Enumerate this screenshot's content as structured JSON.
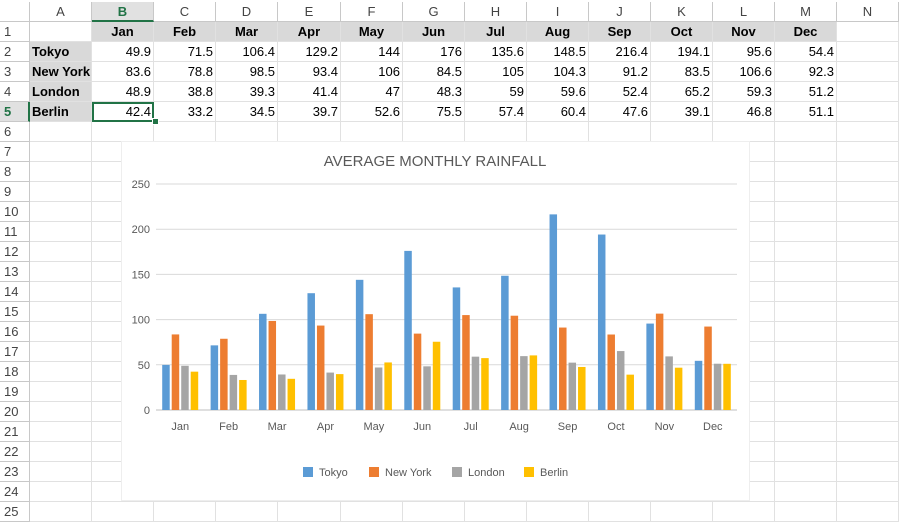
{
  "columns": [
    "A",
    "B",
    "C",
    "D",
    "E",
    "F",
    "G",
    "H",
    "I",
    "J",
    "K",
    "L",
    "M",
    "N"
  ],
  "rows": [
    "1",
    "2",
    "3",
    "4",
    "5",
    "6",
    "7",
    "8",
    "9",
    "10",
    "11",
    "12",
    "13",
    "14",
    "15",
    "16",
    "17",
    "18",
    "19",
    "20",
    "21",
    "22",
    "23",
    "24",
    "25"
  ],
  "selection": {
    "column": "B",
    "row": "5"
  },
  "months": [
    "Jan",
    "Feb",
    "Mar",
    "Apr",
    "May",
    "Jun",
    "Jul",
    "Aug",
    "Sep",
    "Oct",
    "Nov",
    "Dec"
  ],
  "table": [
    {
      "city": "Tokyo",
      "values": [
        "49.9",
        "71.5",
        "106.4",
        "129.2",
        "144",
        "176",
        "135.6",
        "148.5",
        "216.4",
        "194.1",
        "95.6",
        "54.4"
      ]
    },
    {
      "city": "New York",
      "values": [
        "83.6",
        "78.8",
        "98.5",
        "93.4",
        "106",
        "84.5",
        "105",
        "104.3",
        "91.2",
        "83.5",
        "106.6",
        "92.3"
      ]
    },
    {
      "city": "London",
      "values": [
        "48.9",
        "38.8",
        "39.3",
        "41.4",
        "47",
        "48.3",
        "59",
        "59.6",
        "52.4",
        "65.2",
        "59.3",
        "51.2"
      ]
    },
    {
      "city": "Berlin",
      "values": [
        "42.4",
        "33.2",
        "34.5",
        "39.7",
        "52.6",
        "75.5",
        "57.4",
        "60.4",
        "47.6",
        "39.1",
        "46.8",
        "51.1"
      ]
    }
  ],
  "colors": {
    "grid": "#e1e1e1",
    "header_fill": "#d9d9d9",
    "selection": "#217346"
  },
  "chart_data": {
    "type": "bar",
    "title": "AVERAGE MONTHLY RAINFALL",
    "categories": [
      "Jan",
      "Feb",
      "Mar",
      "Apr",
      "May",
      "Jun",
      "Jul",
      "Aug",
      "Sep",
      "Oct",
      "Nov",
      "Dec"
    ],
    "series": [
      {
        "name": "Tokyo",
        "color": "#5b9bd5",
        "values": [
          49.9,
          71.5,
          106.4,
          129.2,
          144,
          176,
          135.6,
          148.5,
          216.4,
          194.1,
          95.6,
          54.4
        ]
      },
      {
        "name": "New York",
        "color": "#ed7d31",
        "values": [
          83.6,
          78.8,
          98.5,
          93.4,
          106,
          84.5,
          105,
          104.3,
          91.2,
          83.5,
          106.6,
          92.3
        ]
      },
      {
        "name": "London",
        "color": "#a5a5a5",
        "values": [
          48.9,
          38.8,
          39.3,
          41.4,
          47,
          48.3,
          59,
          59.6,
          52.4,
          65.2,
          59.3,
          51.2
        ]
      },
      {
        "name": "Berlin",
        "color": "#ffc000",
        "values": [
          42.4,
          33.2,
          34.5,
          39.7,
          52.6,
          75.5,
          57.4,
          60.4,
          47.6,
          39.1,
          46.8,
          51.1
        ]
      }
    ],
    "ylim": [
      0,
      250
    ],
    "yticks": [
      "0",
      "50",
      "100",
      "150",
      "200",
      "250"
    ],
    "grid": true,
    "legend": "bottom"
  }
}
